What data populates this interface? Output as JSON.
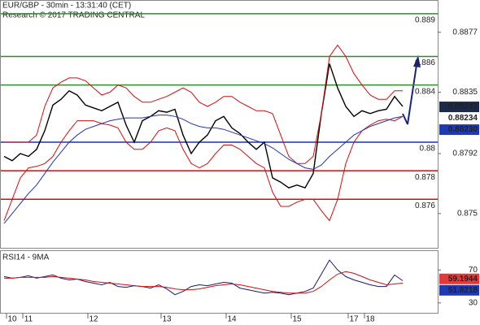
{
  "chart_data": [
    {
      "type": "line",
      "title": "EUR/GBP - 30min - 13:31:40 (CET)",
      "subtitle": "Research © 2017 TRADING CENTRAL",
      "categories": [
        null,
        "10",
        null,
        "11",
        null,
        null,
        null,
        null,
        null,
        null,
        null,
        "12",
        null,
        null,
        null,
        null,
        null,
        null,
        null,
        null,
        "13",
        null,
        null,
        null,
        null,
        null,
        null,
        null,
        "14",
        null,
        null,
        null,
        null,
        null,
        null,
        null,
        "15",
        null,
        null,
        null,
        null,
        null,
        null,
        "17",
        null,
        "18",
        null,
        null,
        null,
        null
      ],
      "ylim": [
        0.8726,
        0.8899
      ],
      "yticks": [
        0.8877,
        0.8835,
        0.8792,
        0.875
      ],
      "series": [
        {
          "color": "#000000",
          "values": [
            0.879,
            0.8787,
            0.8792,
            0.879,
            0.8795,
            0.8808,
            0.8826,
            0.883,
            0.8836,
            0.8833,
            0.8826,
            0.8824,
            0.8822,
            0.8825,
            0.8828,
            0.8812,
            0.88,
            0.8815,
            0.8818,
            0.8822,
            0.8821,
            0.8823,
            0.8805,
            0.8792,
            0.88,
            0.8805,
            0.8815,
            0.8818,
            0.881,
            0.8806,
            0.88,
            0.8795,
            0.88,
            0.8775,
            0.8772,
            0.8768,
            0.877,
            0.8768,
            0.8778,
            0.882,
            0.8855,
            0.8838,
            0.8825,
            0.8818,
            0.8822,
            0.882,
            0.8822,
            0.8823,
            0.8832,
            0.8825
          ]
        },
        {
          "color": "#d01010",
          "values": [
            0.88,
            0.88,
            0.88,
            0.88,
            0.8805,
            0.8825,
            0.8838,
            0.8842,
            0.8845,
            0.8845,
            0.8843,
            0.8838,
            0.8833,
            0.8835,
            0.884,
            0.8838,
            0.8832,
            0.8828,
            0.8828,
            0.883,
            0.8832,
            0.8835,
            0.8838,
            0.8835,
            0.8828,
            0.8825,
            0.8828,
            0.8832,
            0.8832,
            0.8828,
            0.8825,
            0.8822,
            0.8822,
            0.882,
            0.8805,
            0.879,
            0.8785,
            0.8785,
            0.879,
            0.882,
            0.886,
            0.8868,
            0.886,
            0.8848,
            0.884,
            0.8833,
            0.883,
            0.883,
            0.8836,
            0.8836
          ]
        },
        {
          "color": "#d01010",
          "values": [
            0.8745,
            0.876,
            0.8775,
            0.8782,
            0.8783,
            0.8785,
            0.879,
            0.88,
            0.8808,
            0.8815,
            0.8815,
            0.8815,
            0.8813,
            0.8812,
            0.881,
            0.88,
            0.8795,
            0.8795,
            0.88,
            0.8808,
            0.881,
            0.8808,
            0.8795,
            0.8785,
            0.8782,
            0.8785,
            0.8792,
            0.8798,
            0.8798,
            0.8795,
            0.879,
            0.8785,
            0.8782,
            0.8765,
            0.8755,
            0.8755,
            0.8758,
            0.876,
            0.876,
            0.8752,
            0.8745,
            0.876,
            0.8785,
            0.88,
            0.8808,
            0.8812,
            0.8815,
            0.8816,
            0.8815,
            0.8818
          ]
        },
        {
          "color": "#2233bb",
          "values": [
            0.8743,
            0.875,
            0.8757,
            0.8764,
            0.877,
            0.8778,
            0.8786,
            0.8793,
            0.88,
            0.8805,
            0.8809,
            0.8811,
            0.8813,
            0.8815,
            0.8816,
            0.8817,
            0.8817,
            0.8817,
            0.8818,
            0.8819,
            0.8819,
            0.8818,
            0.8816,
            0.8813,
            0.8811,
            0.881,
            0.881,
            0.8809,
            0.8807,
            0.8805,
            0.8803,
            0.8801,
            0.8799,
            0.8796,
            0.8792,
            0.8788,
            0.8785,
            0.8782,
            0.8781,
            0.8784,
            0.879,
            0.8795,
            0.88,
            0.8805,
            0.8808,
            0.8811,
            0.8813,
            0.8815,
            0.8817,
            0.8818
          ]
        }
      ],
      "levels": [
        {
          "value": 0.889,
          "color": "#2e8b2e"
        },
        {
          "value": 0.886,
          "color": "#2e8b2e"
        },
        {
          "value": 0.884,
          "color": "#2e8b2e"
        },
        {
          "value": 0.88,
          "color": "#1f2fb0"
        },
        {
          "value": 0.878,
          "color": "#d01010"
        },
        {
          "value": 0.876,
          "color": "#d01010"
        }
      ],
      "price_labels": [
        {
          "value": 0.88247,
          "label": "0.88247",
          "color": "#ffffff",
          "background": "#1b2a48"
        },
        {
          "value": 0.88234,
          "label": "0.88234",
          "color": "#d01010",
          "background": "#ffffff"
        },
        {
          "value": 0.8823,
          "label": "0.88230",
          "color": "#ffffff",
          "background": "#1f3ab0"
        }
      ]
    },
    {
      "type": "line",
      "title": "RSI14 - 9MA",
      "ylim": [
        18,
        93
      ],
      "yticks": [
        70,
        30
      ],
      "series": [
        {
          "color": "#1a1a6a",
          "values": [
            62,
            60,
            61,
            63,
            60,
            62,
            64,
            60,
            58,
            59,
            56,
            54,
            52,
            55,
            50,
            49,
            51,
            50,
            48,
            52,
            47,
            40,
            44,
            50,
            52,
            51,
            53,
            55,
            54,
            48,
            46,
            44,
            42,
            43,
            42,
            40,
            42,
            44,
            48,
            65,
            82,
            70,
            62,
            58,
            55,
            52,
            50,
            50,
            64,
            57
          ]
        },
        {
          "color": "#d01010",
          "values": [
            60,
            60,
            61,
            61,
            61,
            61,
            62,
            61,
            60,
            59,
            58,
            56,
            55,
            54,
            53,
            52,
            51,
            50,
            50,
            50,
            49,
            47,
            46,
            46,
            47,
            49,
            51,
            52,
            53,
            52,
            50,
            48,
            46,
            44,
            43,
            42,
            42,
            42,
            44,
            50,
            58,
            65,
            68,
            66,
            62,
            58,
            55,
            52,
            53,
            54
          ]
        }
      ],
      "price_labels": [
        {
          "value": 59.1944,
          "label": "59.1944",
          "color": "#000000",
          "background": "#e23a3a"
        },
        {
          "value": 51.8218,
          "label": "51.8218",
          "color": "#ffffff",
          "background": "#1f3ab0"
        }
      ]
    }
  ]
}
